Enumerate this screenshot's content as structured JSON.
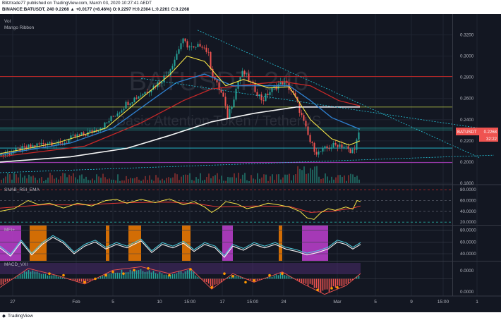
{
  "header": {
    "published": "Blitztrade77 published on TradingView.com, March 03, 2020 10:27:41 AEDT",
    "symbol_line": "BINANCE:BATUSDT, 240 0.2268 ▲ +0.0177 (+8.46%) O:0.2297 H:0.2304 L:0.2261 C:0.2268"
  },
  "footer": {
    "brand": "TradingView"
  },
  "panes": {
    "main": {
      "labels": [
        "Vol",
        "Mango Ribbon"
      ],
      "watermark_symbol": "BATUSDT, 240",
      "watermark_name": "Basic Attention Token / TetherUS"
    },
    "rsi": {
      "label": "SNAB_RSI_EMA"
    },
    "mfi": {
      "label": "MFI+"
    },
    "macd": {
      "label": "MACD_VXI"
    }
  },
  "price_tag": {
    "symbol": "BATUSDT",
    "value": "0.2268",
    "countdown": "32:22"
  },
  "colors": {
    "bg": "#131722",
    "grid": "#1f2431",
    "candle_up": "#26a69a",
    "candle_down": "#ef5350",
    "ema_yellow": "#f6e547",
    "ema_blue": "#2f80d0",
    "ema_red": "#c62828",
    "ema_white": "#f5f5f5",
    "trend": "#26c6da",
    "rsi": "#f6e547",
    "rsi_ema": "#e53935",
    "mfi_line": "#4dd0e1",
    "mfi_orange": "#f57c00",
    "mfi_magenta": "#c040d0"
  },
  "chart_data": [
    {
      "type": "candlestick",
      "title": "BINANCE:BATUSDT, 240",
      "x_ticks": [
        "27",
        "Feb",
        "5",
        "10",
        "15:00",
        "17",
        "15:00",
        "24",
        "Mar",
        "5",
        "9",
        "15:00",
        "1"
      ],
      "y_ticks": [
        "0.3200",
        "0.3000",
        "0.2800",
        "0.2600",
        "0.2400",
        "0.2200",
        "0.2000",
        "0.1800"
      ],
      "ylim": [
        0.18,
        0.325
      ],
      "close_path": [
        [
          0,
          0.206
        ],
        [
          35,
          0.213
        ],
        [
          70,
          0.219
        ],
        [
          85,
          0.216
        ],
        [
          105,
          0.224
        ],
        [
          120,
          0.226
        ],
        [
          135,
          0.23
        ],
        [
          150,
          0.236
        ],
        [
          160,
          0.243
        ],
        [
          170,
          0.249
        ],
        [
          180,
          0.256
        ],
        [
          195,
          0.262
        ],
        [
          210,
          0.268
        ],
        [
          225,
          0.275
        ],
        [
          238,
          0.284
        ],
        [
          248,
          0.298
        ],
        [
          258,
          0.315
        ],
        [
          266,
          0.31
        ],
        [
          276,
          0.306
        ],
        [
          285,
          0.312
        ],
        [
          295,
          0.303
        ],
        [
          300,
          0.285
        ],
        [
          308,
          0.272
        ],
        [
          316,
          0.262
        ],
        [
          322,
          0.242
        ],
        [
          330,
          0.258
        ],
        [
          338,
          0.278
        ],
        [
          345,
          0.285
        ],
        [
          352,
          0.278
        ],
        [
          362,
          0.268
        ],
        [
          372,
          0.258
        ],
        [
          380,
          0.265
        ],
        [
          392,
          0.272
        ],
        [
          402,
          0.276
        ],
        [
          412,
          0.268
        ],
        [
          420,
          0.258
        ],
        [
          430,
          0.238
        ],
        [
          440,
          0.218
        ],
        [
          450,
          0.208
        ],
        [
          460,
          0.212
        ],
        [
          470,
          0.215
        ],
        [
          480,
          0.217
        ],
        [
          490,
          0.214
        ],
        [
          497,
          0.208
        ],
        [
          503,
          0.215
        ],
        [
          509,
          0.2268
        ]
      ],
      "ema_yellow": [
        [
          0,
          0.208
        ],
        [
          80,
          0.218
        ],
        [
          150,
          0.232
        ],
        [
          200,
          0.26
        ],
        [
          240,
          0.282
        ],
        [
          265,
          0.3
        ],
        [
          290,
          0.295
        ],
        [
          320,
          0.272
        ],
        [
          345,
          0.278
        ],
        [
          380,
          0.27
        ],
        [
          410,
          0.271
        ],
        [
          440,
          0.24
        ],
        [
          470,
          0.222
        ],
        [
          495,
          0.216
        ],
        [
          510,
          0.22
        ]
      ],
      "ema_blue": [
        [
          0,
          0.207
        ],
        [
          100,
          0.218
        ],
        [
          160,
          0.232
        ],
        [
          210,
          0.256
        ],
        [
          250,
          0.275
        ],
        [
          290,
          0.283
        ],
        [
          330,
          0.272
        ],
        [
          380,
          0.272
        ],
        [
          410,
          0.272
        ],
        [
          440,
          0.258
        ],
        [
          470,
          0.242
        ],
        [
          510,
          0.231
        ]
      ],
      "ema_red": [
        [
          0,
          0.205
        ],
        [
          120,
          0.215
        ],
        [
          200,
          0.237
        ],
        [
          260,
          0.258
        ],
        [
          300,
          0.269
        ],
        [
          350,
          0.273
        ],
        [
          400,
          0.276
        ],
        [
          440,
          0.272
        ],
        [
          480,
          0.258
        ],
        [
          510,
          0.253
        ]
      ],
      "ema_white": [
        [
          0,
          0.2
        ],
        [
          100,
          0.205
        ],
        [
          180,
          0.213
        ],
        [
          240,
          0.225
        ],
        [
          300,
          0.238
        ],
        [
          360,
          0.246
        ],
        [
          420,
          0.252
        ],
        [
          480,
          0.252
        ],
        [
          510,
          0.252
        ]
      ],
      "horizontal_levels": [
        {
          "y": 0.2808,
          "color": "#c62828"
        },
        {
          "y": 0.2519,
          "color": "#c6d64a"
        },
        {
          "y": 0.2304,
          "color": "#26a69a"
        },
        {
          "y": 0.2132,
          "color": "#26c6da"
        },
        {
          "y": 0.1995,
          "color": "#c040d0"
        },
        {
          "y": 0.232,
          "color": "#26a69a"
        }
      ],
      "trendlines": [
        {
          "x1": 280,
          "y1": 0.3245,
          "x2": 680,
          "y2": 0.204
        },
        {
          "x1": 200,
          "y1": 0.279,
          "x2": 700,
          "y2": 0.23
        },
        {
          "x1": 0,
          "y1": 0.19,
          "x2": 700,
          "y2": 0.2065
        }
      ]
    },
    {
      "type": "line",
      "title": "SNAB_RSI_EMA",
      "y_ticks": [
        "80.0000",
        "60.0000",
        "40.0000",
        "20.0000"
      ],
      "ylim": [
        15,
        88
      ],
      "rsi": [
        [
          0,
          40
        ],
        [
          20,
          45
        ],
        [
          40,
          60
        ],
        [
          55,
          52
        ],
        [
          70,
          55
        ],
        [
          90,
          46
        ],
        [
          110,
          55
        ],
        [
          130,
          50
        ],
        [
          150,
          60
        ],
        [
          165,
          62
        ],
        [
          180,
          55
        ],
        [
          200,
          62
        ],
        [
          220,
          56
        ],
        [
          240,
          63
        ],
        [
          260,
          52
        ],
        [
          275,
          58
        ],
        [
          290,
          48
        ],
        [
          300,
          38
        ],
        [
          310,
          46
        ],
        [
          320,
          58
        ],
        [
          335,
          54
        ],
        [
          350,
          45
        ],
        [
          365,
          49
        ],
        [
          380,
          55
        ],
        [
          395,
          52
        ],
        [
          410,
          48
        ],
        [
          425,
          40
        ],
        [
          435,
          28
        ],
        [
          445,
          25
        ],
        [
          455,
          38
        ],
        [
          465,
          45
        ],
        [
          475,
          42
        ],
        [
          490,
          48
        ],
        [
          500,
          44
        ],
        [
          506,
          60
        ],
        [
          511,
          58
        ]
      ],
      "ema": [
        [
          0,
          46
        ],
        [
          60,
          52
        ],
        [
          120,
          52
        ],
        [
          180,
          56
        ],
        [
          240,
          57
        ],
        [
          280,
          54
        ],
        [
          310,
          48
        ],
        [
          360,
          50
        ],
        [
          410,
          49
        ],
        [
          440,
          38
        ],
        [
          470,
          40
        ],
        [
          500,
          46
        ],
        [
          511,
          50
        ]
      ]
    },
    {
      "type": "line",
      "title": "MFI+",
      "y_ticks": [
        "80.0000",
        "60.0000",
        "40.0000"
      ],
      "ylim": [
        28,
        88
      ],
      "mfi": [
        [
          0,
          52
        ],
        [
          15,
          38
        ],
        [
          30,
          62
        ],
        [
          45,
          40
        ],
        [
          60,
          58
        ],
        [
          75,
          70
        ],
        [
          90,
          60
        ],
        [
          105,
          42
        ],
        [
          120,
          55
        ],
        [
          135,
          62
        ],
        [
          150,
          50
        ],
        [
          165,
          58
        ],
        [
          180,
          52
        ],
        [
          200,
          64
        ],
        [
          215,
          44
        ],
        [
          230,
          58
        ],
        [
          245,
          52
        ],
        [
          260,
          60
        ],
        [
          275,
          46
        ],
        [
          290,
          58
        ],
        [
          305,
          52
        ],
        [
          318,
          36
        ],
        [
          330,
          55
        ],
        [
          345,
          48
        ],
        [
          360,
          58
        ],
        [
          375,
          52
        ],
        [
          390,
          58
        ],
        [
          405,
          50
        ],
        [
          420,
          46
        ],
        [
          435,
          40
        ],
        [
          450,
          44
        ],
        [
          465,
          50
        ],
        [
          478,
          62
        ],
        [
          490,
          58
        ],
        [
          500,
          50
        ],
        [
          511,
          58
        ]
      ],
      "highlight_bands": [
        {
          "x1": 0,
          "x2": 30,
          "color": "#c040d0"
        },
        {
          "x1": 42,
          "x2": 66,
          "color": "#f57c00"
        },
        {
          "x1": 150,
          "x2": 155,
          "color": "#f57c00"
        },
        {
          "x1": 182,
          "x2": 200,
          "color": "#f57c00"
        },
        {
          "x1": 258,
          "x2": 270,
          "color": "#f57c00"
        },
        {
          "x1": 315,
          "x2": 330,
          "color": "#c040d0"
        },
        {
          "x1": 395,
          "x2": 400,
          "color": "#f57c00"
        },
        {
          "x1": 428,
          "x2": 465,
          "color": "#c040d0"
        }
      ]
    },
    {
      "type": "bar",
      "title": "MACD_VXI",
      "y_ticks": [
        "0.0000",
        "0.0000"
      ],
      "ylim": [
        -1,
        1
      ],
      "histogram_envelope": [
        [
          0,
          -0.5
        ],
        [
          40,
          0.6
        ],
        [
          80,
          0.2
        ],
        [
          120,
          -0.3
        ],
        [
          160,
          0.5
        ],
        [
          200,
          0.7
        ],
        [
          240,
          0.3
        ],
        [
          270,
          0.6
        ],
        [
          300,
          -0.6
        ],
        [
          330,
          0.3
        ],
        [
          360,
          -0.2
        ],
        [
          400,
          0.4
        ],
        [
          430,
          -0.3
        ],
        [
          460,
          -0.9
        ],
        [
          490,
          -0.4
        ],
        [
          511,
          0.3
        ]
      ],
      "signal_dots": [
        [
          70,
          0.3
        ],
        [
          90,
          0.2
        ],
        [
          120,
          -0.2
        ],
        [
          135,
          0.0
        ],
        [
          150,
          0.2
        ],
        [
          160,
          0.4
        ],
        [
          175,
          0.3
        ],
        [
          190,
          0.5
        ],
        [
          210,
          0.6
        ],
        [
          240,
          0.2
        ],
        [
          270,
          0.55
        ],
        [
          300,
          -0.5
        ],
        [
          318,
          0.3
        ],
        [
          330,
          0.15
        ],
        [
          348,
          -0.2
        ],
        [
          360,
          -0.1
        ],
        [
          382,
          0.2
        ],
        [
          400,
          0.3
        ],
        [
          450,
          -0.65
        ],
        [
          470,
          -0.55
        ],
        [
          478,
          -0.5
        ]
      ]
    }
  ]
}
